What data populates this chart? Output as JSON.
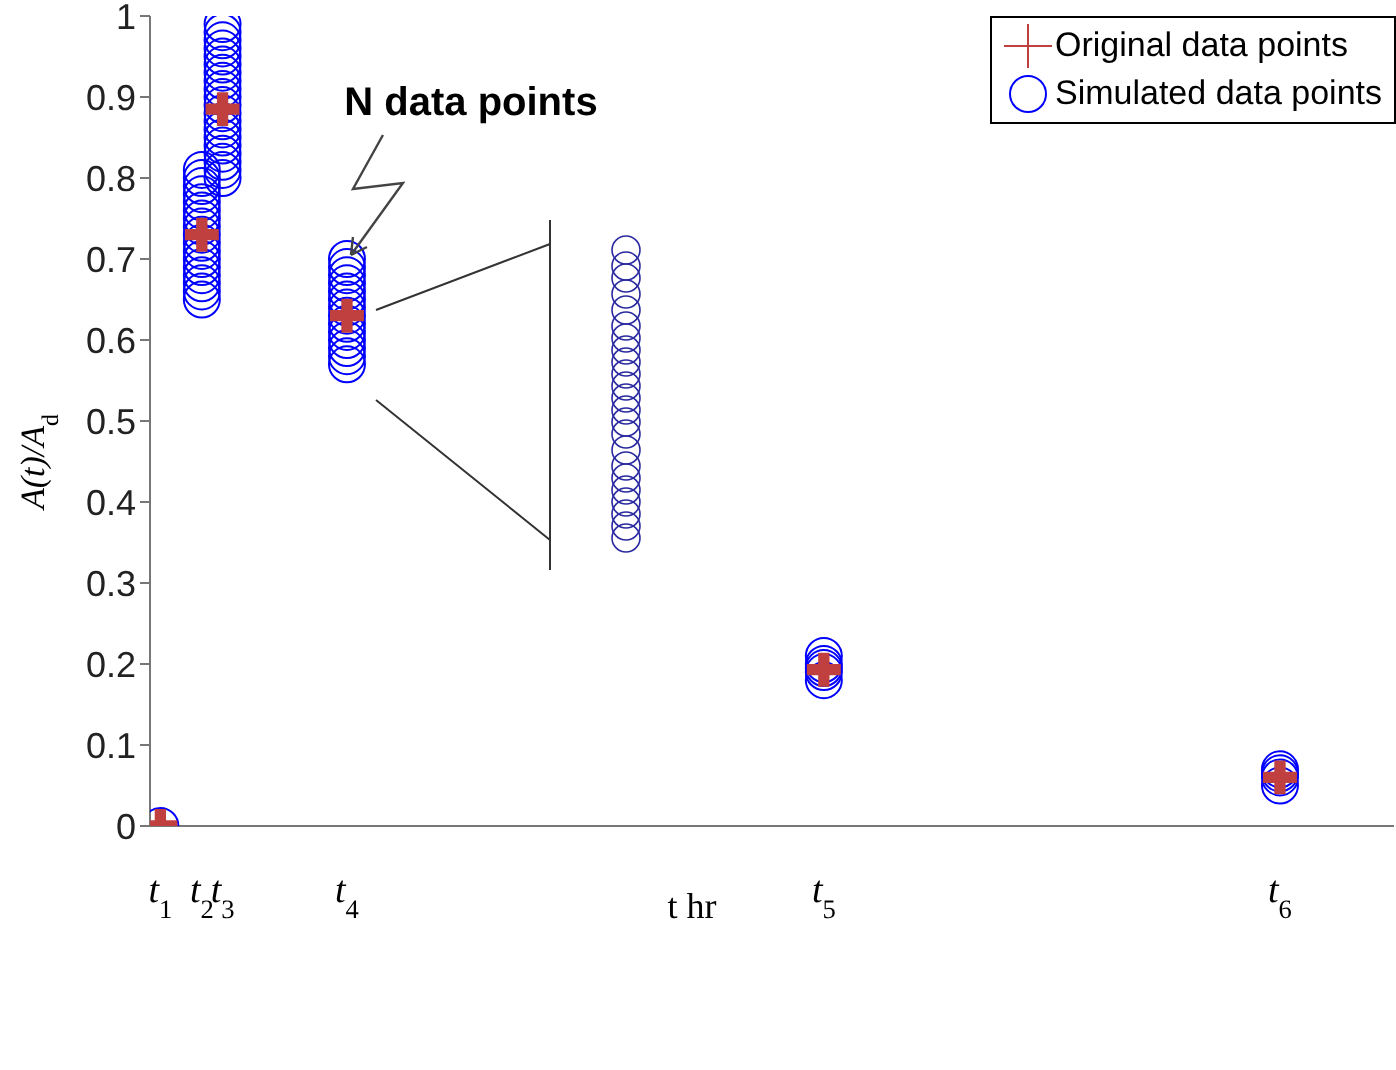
{
  "chart_data": {
    "type": "scatter",
    "xlabel": "t  hr",
    "ylabel": "A(t)/A$_{d}$",
    "ylim": [
      0,
      1
    ],
    "categories": [
      "t$_{1}$",
      null,
      "t$_{2}$",
      "t$_{3}$",
      null,
      null,
      null,
      null,
      null,
      "t$_{4}$",
      null,
      null,
      null,
      null,
      null,
      null,
      null,
      null,
      null,
      null,
      null,
      null,
      null,
      null,
      null,
      null,
      null,
      null,
      null,
      null,
      null,
      null,
      "t$_{5}$",
      null,
      null,
      null,
      null,
      null,
      null,
      null,
      null,
      null,
      null,
      null,
      null,
      null,
      null,
      null,
      null,
      null,
      null,
      null,
      null,
      null,
      "t$_{6}$",
      null,
      null,
      null,
      null,
      null
    ],
    "yticks": [
      0,
      0.1,
      0.2,
      0.3,
      0.4,
      0.5,
      0.6,
      0.7,
      0.8,
      0.9,
      1
    ],
    "legend": "top right",
    "annotations": [
      {
        "text": "N data points",
        "x": "t$_{4}$",
        "y": 0.7
      }
    ],
    "series": [
      {
        "name": "Simulated data points",
        "color": "#0000ff",
        "marker": "circle",
        "x": [
          "t$_{1}$",
          "t$_{2}$",
          "t$_{2}$",
          "t$_{2}$",
          "t$_{2}$",
          "t$_{2}$",
          "t$_{2}$",
          "t$_{2}$",
          "t$_{2}$",
          "t$_{2}$",
          "t$_{2}$",
          "t$_{2}$",
          "t$_{2}$",
          "t$_{2}$",
          "t$_{2}$",
          "t$_{2}$",
          "t$_{2}$",
          "t$_{2}$",
          "t$_{3}$",
          "t$_{3}$",
          "t$_{3}$",
          "t$_{3}$",
          "t$_{3}$",
          "t$_{3}$",
          "t$_{3}$",
          "t$_{3}$",
          "t$_{3}$",
          "t$_{3}$",
          "t$_{3}$",
          "t$_{3}$",
          "t$_{3}$",
          "t$_{3}$",
          "t$_{3}$",
          "t$_{3}$",
          "t$_{3}$",
          "t$_{3}$",
          "t$_{3}$",
          "t$_{3}$",
          "t$_{4}$",
          "t$_{4}$",
          "t$_{4}$",
          "t$_{4}$",
          "t$_{4}$",
          "t$_{4}$",
          "t$_{4}$",
          "t$_{4}$",
          "t$_{4}$",
          "t$_{4}$",
          "t$_{4}$",
          "t$_{4}$",
          "t$_{4}$",
          "t$_{4}$",
          "t$_{5}$",
          "t$_{5}$",
          "t$_{5}$",
          "t$_{5}$",
          "t$_{5}$",
          "t$_{6}$",
          "t$_{6}$",
          "t$_{6}$",
          "t$_{6}$"
        ],
        "values": [
          0,
          0.65,
          0.66,
          0.67,
          0.68,
          0.69,
          0.7,
          0.71,
          0.72,
          0.73,
          0.74,
          0.75,
          0.76,
          0.77,
          0.78,
          0.79,
          0.8,
          0.81,
          0.8,
          0.81,
          0.82,
          0.83,
          0.84,
          0.85,
          0.86,
          0.87,
          0.88,
          0.89,
          0.9,
          0.91,
          0.92,
          0.93,
          0.94,
          0.95,
          0.96,
          0.97,
          0.98,
          0.99,
          0.57,
          0.58,
          0.59,
          0.6,
          0.61,
          0.62,
          0.63,
          0.64,
          0.65,
          0.66,
          0.67,
          0.68,
          0.69,
          0.7,
          0.18,
          0.19,
          0.195,
          0.2,
          0.21,
          0.05,
          0.06,
          0.065,
          0.07
        ]
      },
      {
        "name": "Original data points",
        "color": "#c04040",
        "marker": "cross",
        "x": [
          "t$_{1}$",
          "t$_{2}$",
          "t$_{3}$",
          "t$_{4}$",
          "t$_{5}$",
          "t$_{6}$"
        ],
        "values": [
          0,
          0.73,
          0.885,
          0.63,
          0.193,
          0.06
        ]
      }
    ]
  }
}
